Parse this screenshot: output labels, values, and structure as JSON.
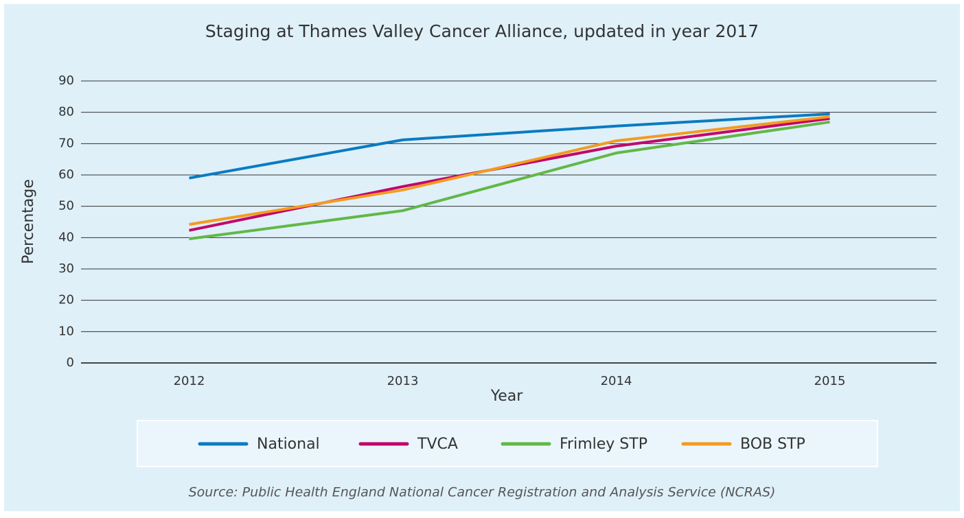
{
  "chart_data": {
    "type": "line",
    "title": "Staging at Thames Valley Cancer Alliance, updated in year 2017",
    "x_label": "Year",
    "y_label": "Percentage",
    "categories": [
      "2012",
      "2013",
      "2014",
      "2015"
    ],
    "series": [
      {
        "name": "National",
        "color": "#0a7bc2",
        "values": [
          59,
          71.2,
          75.6,
          79.5
        ]
      },
      {
        "name": "TVCA",
        "color": "#c0076b",
        "values": [
          42.3,
          56.3,
          69.2,
          78
        ]
      },
      {
        "name": "Frimley STP",
        "color": "#62b846",
        "values": [
          39.6,
          48.6,
          67,
          76.9
        ]
      },
      {
        "name": "BOB STP",
        "color": "#f49b20",
        "values": [
          44.2,
          55.2,
          70.9,
          78.6
        ]
      }
    ],
    "ylim": [
      0,
      90
    ],
    "yticks": [
      0,
      10,
      20,
      30,
      40,
      50,
      60,
      70,
      80,
      90
    ],
    "grid": true,
    "legend": "bottom",
    "source": "Source: Public Health England National Cancer Registration and Analysis Service (NCRAS)"
  }
}
